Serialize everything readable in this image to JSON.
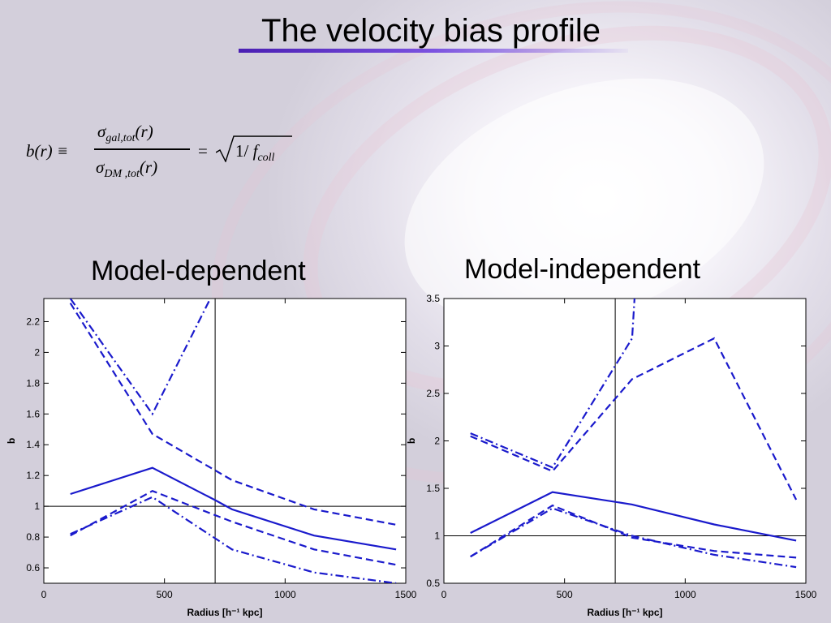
{
  "slide": {
    "title": "The velocity bias profile",
    "formula": {
      "lhs": "b(r) ≡",
      "numerator_symbol": "σ",
      "numerator_sub": "gal,tot",
      "numerator_arg": "(r)",
      "denominator_symbol": "σ",
      "denominator_sub": "DM ,tot",
      "denominator_arg": "(r)",
      "equals": "=",
      "rhs_prefix": "1/ ",
      "rhs_symbol": "f",
      "rhs_sub": "coll"
    },
    "left_panel_title": "Model-dependent",
    "right_panel_title": "Model-independent"
  },
  "colors": {
    "series": "#1a1acc",
    "axes": "#000000",
    "plot_bg": "#ffffff"
  },
  "chart_data": [
    {
      "type": "line",
      "title": "Model-dependent",
      "xlabel": "Radius [h⁻¹ kpc]",
      "ylabel": "b",
      "xlim": [
        0,
        1500
      ],
      "ylim": [
        0.5,
        2.35
      ],
      "xticks": [
        0,
        500,
        1000,
        1500
      ],
      "yticks": [
        0.6,
        0.8,
        1,
        1.2,
        1.4,
        1.6,
        1.8,
        2,
        2.2
      ],
      "ytick_labels": [
        "0.6",
        "0.8",
        "1",
        "1.2",
        "1.4",
        "1.6",
        "1.8",
        "2",
        "2.2"
      ],
      "hline": 1,
      "vline": 710,
      "grid": false,
      "series": [
        {
          "style": "solid",
          "x": [
            110,
            450,
            710,
            780,
            1120,
            1460
          ],
          "y": [
            1.08,
            1.25,
            1.04,
            0.98,
            0.81,
            0.72
          ]
        },
        {
          "style": "dashed",
          "x": [
            110,
            450,
            780,
            1120,
            1460
          ],
          "y": [
            2.32,
            1.47,
            1.17,
            0.98,
            0.88
          ]
        },
        {
          "style": "dashed",
          "x": [
            110,
            450,
            780,
            1120,
            1460
          ],
          "y": [
            0.81,
            1.1,
            0.9,
            0.72,
            0.62
          ]
        },
        {
          "style": "dashdot",
          "x": [
            110,
            450,
            690
          ],
          "y": [
            2.35,
            1.6,
            2.35
          ]
        },
        {
          "style": "dashdot",
          "x": [
            110,
            450,
            780,
            1120,
            1460
          ],
          "y": [
            0.82,
            1.06,
            0.72,
            0.57,
            0.5
          ]
        }
      ]
    },
    {
      "type": "line",
      "title": "Model-independent",
      "xlabel": "Radius [h⁻¹ kpc]",
      "ylabel": "b",
      "xlim": [
        0,
        1500
      ],
      "ylim": [
        0.5,
        3.5
      ],
      "xticks": [
        0,
        500,
        1000,
        1500
      ],
      "yticks": [
        0.5,
        1,
        1.5,
        2,
        2.5,
        3,
        3.5
      ],
      "ytick_labels": [
        "0.5",
        "1",
        "1.5",
        "2",
        "2.5",
        "3",
        "3.5"
      ],
      "hline": 1,
      "vline": 710,
      "grid": false,
      "series": [
        {
          "style": "solid",
          "x": [
            110,
            450,
            780,
            1120,
            1460
          ],
          "y": [
            1.03,
            1.46,
            1.33,
            1.12,
            0.95
          ]
        },
        {
          "style": "dashed",
          "x": [
            110,
            450,
            780,
            1120,
            1460
          ],
          "y": [
            2.05,
            1.68,
            2.65,
            3.08,
            1.38
          ]
        },
        {
          "style": "dashed",
          "x": [
            110,
            450,
            780,
            1120,
            1460
          ],
          "y": [
            0.78,
            1.32,
            0.98,
            0.84,
            0.77
          ]
        },
        {
          "style": "dashdot",
          "x": [
            110,
            450,
            780,
            790
          ],
          "y": [
            2.08,
            1.72,
            3.08,
            3.5
          ]
        },
        {
          "style": "dashdot",
          "x": [
            110,
            450,
            780,
            1120,
            1460
          ],
          "y": [
            0.78,
            1.29,
            1.0,
            0.8,
            0.67
          ]
        }
      ]
    }
  ]
}
